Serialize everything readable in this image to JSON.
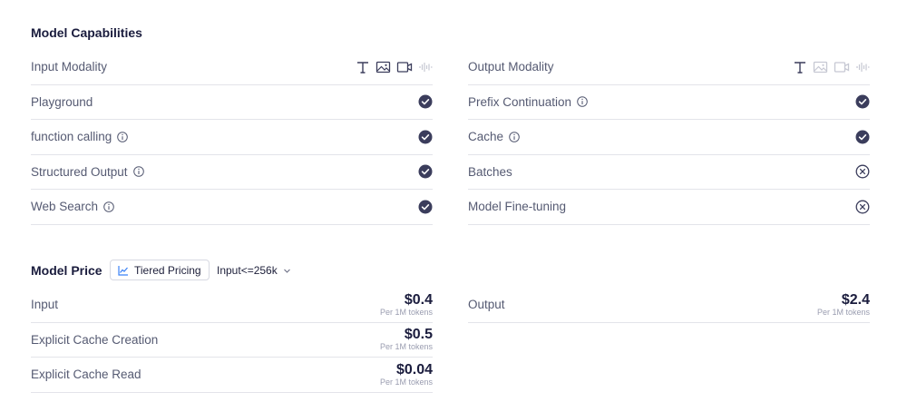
{
  "capabilities": {
    "title": "Model Capabilities",
    "left": [
      {
        "label": "Input Modality",
        "type": "modality"
      },
      {
        "label": "Playground",
        "info": false,
        "status": "check"
      },
      {
        "label": "function calling",
        "info": true,
        "status": "check"
      },
      {
        "label": "Structured Output",
        "info": true,
        "status": "check"
      },
      {
        "label": "Web Search",
        "info": true,
        "status": "check"
      }
    ],
    "right": [
      {
        "label": "Output Modality",
        "type": "modality"
      },
      {
        "label": "Prefix Continuation",
        "info": true,
        "status": "check"
      },
      {
        "label": "Cache",
        "info": true,
        "status": "check"
      },
      {
        "label": "Batches",
        "info": false,
        "status": "cross"
      },
      {
        "label": "Model Fine-tuning",
        "info": false,
        "status": "cross"
      }
    ],
    "input_modalities": {
      "text": true,
      "image": true,
      "video": true,
      "audio": false
    },
    "output_modalities": {
      "text": true,
      "image": false,
      "video": false,
      "audio": false
    }
  },
  "pricing": {
    "title": "Model Price",
    "tier_button_label": "Tiered Pricing",
    "tier_select_value": "Input<=256k",
    "left": [
      {
        "label": "Input",
        "price": "$0.4",
        "unit": "Per 1M tokens"
      },
      {
        "label": "Explicit Cache Creation",
        "price": "$0.5",
        "unit": "Per 1M tokens"
      },
      {
        "label": "Explicit Cache Read",
        "price": "$0.04",
        "unit": "Per 1M tokens"
      }
    ],
    "right": [
      {
        "label": "Output",
        "price": "$2.4",
        "unit": "Per 1M tokens"
      }
    ]
  },
  "colors": {
    "icon_dark": "#3b3d5c",
    "icon_muted": "#c6c8d3",
    "divider": "#e3e4ea",
    "accent": "#3b82f6"
  }
}
